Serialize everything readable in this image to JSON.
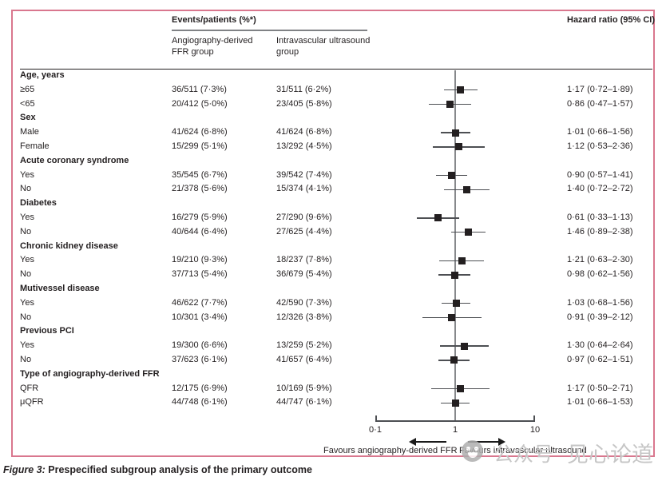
{
  "header": {
    "events_title": "Events/patients (%*)",
    "col1_line1": "Angiography-derived",
    "col1_line2": "FFR group",
    "col2_line1": "Intravascular ultrasound",
    "col2_line2": "group",
    "hr_title": "Hazard ratio (95% CI)"
  },
  "axis": {
    "tick_labels": [
      "0·1",
      "1",
      "10"
    ],
    "favours_left": "Favours angiography-derived FFR",
    "favours_right": "Favours intravascular ultrasound"
  },
  "caption": {
    "label": "Figure 3:",
    "text": " Prespecified subgroup analysis of the primary outcome"
  },
  "watermark": {
    "icon": "wechat-icon",
    "text_left": "公众号",
    "text_right": "见心论道"
  },
  "colors": {
    "border_pink": "#d9778e",
    "text": "#231f20",
    "ci_line": "#4d4f53",
    "reference_line": "#87898c",
    "underline_gray": "#808285",
    "watermark_gray": "#c6c6c6"
  },
  "chart_data": {
    "type": "forest",
    "x_scale": "log10",
    "x_ticks": [
      0.1,
      1,
      10
    ],
    "x_range": [
      0.1,
      10
    ],
    "reference_value": 1,
    "columns": [
      "Subgroup",
      "Angiography-derived FFR group",
      "Intravascular ultrasound group",
      "Hazard ratio (95% CI)"
    ],
    "rows": [
      {
        "kind": "group",
        "label": "Age, years"
      },
      {
        "kind": "item",
        "label": "≥65",
        "ffr": "36/511 (7·3%)",
        "ivus": "31/511 (6·2%)",
        "hr": 1.17,
        "lo": 0.72,
        "hi": 1.89,
        "hr_text": "1·17 (0·72–1·89)"
      },
      {
        "kind": "item",
        "label": "<65",
        "ffr": "20/412 (5·0%)",
        "ivus": "23/405 (5·8%)",
        "hr": 0.86,
        "lo": 0.47,
        "hi": 1.57,
        "hr_text": "0·86 (0·47–1·57)"
      },
      {
        "kind": "group",
        "label": "Sex"
      },
      {
        "kind": "item",
        "label": "Male",
        "ffr": "41/624 (6·8%)",
        "ivus": "41/624 (6·8%)",
        "hr": 1.01,
        "lo": 0.66,
        "hi": 1.56,
        "hr_text": "1·01 (0·66–1·56)"
      },
      {
        "kind": "item",
        "label": "Female",
        "ffr": "15/299 (5·1%)",
        "ivus": "13/292 (4·5%)",
        "hr": 1.12,
        "lo": 0.53,
        "hi": 2.36,
        "hr_text": "1·12 (0·53–2·36)"
      },
      {
        "kind": "group",
        "label": "Acute coronary syndrome"
      },
      {
        "kind": "item",
        "label": "Yes",
        "ffr": "35/545 (6·7%)",
        "ivus": "39/542 (7·4%)",
        "hr": 0.9,
        "lo": 0.57,
        "hi": 1.41,
        "hr_text": "0·90 (0·57–1·41)"
      },
      {
        "kind": "item",
        "label": "No",
        "ffr": "21/378 (5·6%)",
        "ivus": "15/374 (4·1%)",
        "hr": 1.4,
        "lo": 0.72,
        "hi": 2.72,
        "hr_text": "1·40 (0·72–2·72)"
      },
      {
        "kind": "group",
        "label": "Diabetes"
      },
      {
        "kind": "item",
        "label": "Yes",
        "ffr": "16/279 (5·9%)",
        "ivus": "27/290 (9·6%)",
        "hr": 0.61,
        "lo": 0.33,
        "hi": 1.13,
        "hr_text": "0·61 (0·33–1·13)"
      },
      {
        "kind": "item",
        "label": "No",
        "ffr": "40/644 (6·4%)",
        "ivus": "27/625 (4·4%)",
        "hr": 1.46,
        "lo": 0.89,
        "hi": 2.38,
        "hr_text": "1·46 (0·89–2·38)"
      },
      {
        "kind": "group",
        "label": "Chronic kidney disease"
      },
      {
        "kind": "item",
        "label": "Yes",
        "ffr": "19/210 (9·3%)",
        "ivus": "18/237 (7·8%)",
        "hr": 1.21,
        "lo": 0.63,
        "hi": 2.3,
        "hr_text": "1·21 (0·63–2·30)"
      },
      {
        "kind": "item",
        "label": "No",
        "ffr": "37/713 (5·4%)",
        "ivus": "36/679 (5·4%)",
        "hr": 0.98,
        "lo": 0.62,
        "hi": 1.56,
        "hr_text": "0·98 (0·62–1·56)"
      },
      {
        "kind": "group",
        "label": "Mutivessel disease"
      },
      {
        "kind": "item",
        "label": "Yes",
        "ffr": "46/622 (7·7%)",
        "ivus": "42/590 (7·3%)",
        "hr": 1.03,
        "lo": 0.68,
        "hi": 1.56,
        "hr_text": "1·03 (0·68–1·56)"
      },
      {
        "kind": "item",
        "label": "No",
        "ffr": "10/301 (3·4%)",
        "ivus": "12/326 (3·8%)",
        "hr": 0.91,
        "lo": 0.39,
        "hi": 2.12,
        "hr_text": "0·91 (0·39–2·12)"
      },
      {
        "kind": "group",
        "label": "Previous PCI"
      },
      {
        "kind": "item",
        "label": "Yes",
        "ffr": "19/300 (6·6%)",
        "ivus": "13/259 (5·2%)",
        "hr": 1.3,
        "lo": 0.64,
        "hi": 2.64,
        "hr_text": "1·30 (0·64–2·64)"
      },
      {
        "kind": "item",
        "label": "No",
        "ffr": "37/623 (6·1%)",
        "ivus": "41/657 (6·4%)",
        "hr": 0.97,
        "lo": 0.62,
        "hi": 1.51,
        "hr_text": "0·97 (0·62–1·51)"
      },
      {
        "kind": "group",
        "label": "Type of angiography-derived FFR"
      },
      {
        "kind": "item",
        "label": "QFR",
        "ffr": "12/175 (6·9%)",
        "ivus": "10/169 (5·9%)",
        "hr": 1.17,
        "lo": 0.5,
        "hi": 2.71,
        "hr_text": "1·17 (0·50–2·71)"
      },
      {
        "kind": "item",
        "label": "μQFR",
        "ffr": "44/748 (6·1%)",
        "ivus": "44/747 (6·1%)",
        "hr": 1.01,
        "lo": 0.66,
        "hi": 1.53,
        "hr_text": "1·01 (0·66–1·53)"
      }
    ]
  }
}
